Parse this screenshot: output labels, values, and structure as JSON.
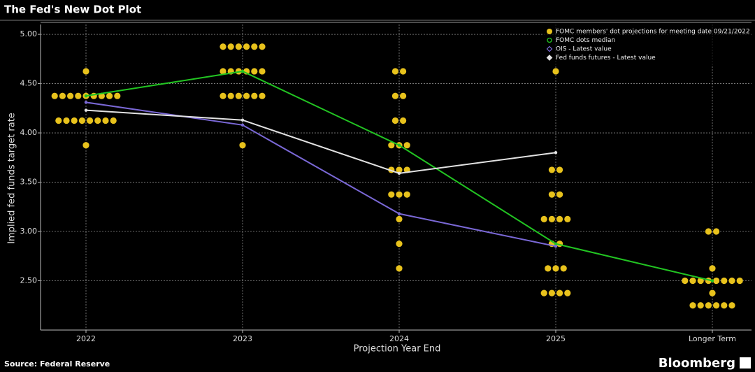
{
  "chart_data": {
    "type": "dot",
    "title": "The Fed's New Dot Plot",
    "y_label": "Implied fed funds target rate",
    "x_label": "Projection Year End",
    "source": "Source: Federal Reserve",
    "brand": "Bloomberg",
    "categories": [
      "2022",
      "2023",
      "2024",
      "2025",
      "Longer Term"
    ],
    "ylim": [
      2.0,
      5.1
    ],
    "yticks": [
      {
        "value": 2.5,
        "label": "2.50"
      },
      {
        "value": 3.0,
        "label": "3.00"
      },
      {
        "value": 3.5,
        "label": "3.50"
      },
      {
        "value": 4.0,
        "label": "4.00"
      },
      {
        "value": 4.5,
        "label": "4.50"
      },
      {
        "value": 5.0,
        "label": "5.00"
      }
    ],
    "grid": true,
    "legend": "top-right",
    "series": [
      {
        "name": "FOMC members' dot projections for meeting date 09/21/2022",
        "type": "dot",
        "color": "#e8c21c",
        "values": [
          [
            4.625,
            4.375,
            4.375,
            4.375,
            4.375,
            4.375,
            4.375,
            4.375,
            4.375,
            4.375,
            4.125,
            4.125,
            4.125,
            4.125,
            4.125,
            4.125,
            4.125,
            4.125,
            3.875
          ],
          [
            4.875,
            4.875,
            4.875,
            4.875,
            4.875,
            4.875,
            4.625,
            4.625,
            4.625,
            4.625,
            4.625,
            4.625,
            4.375,
            4.375,
            4.375,
            4.375,
            4.375,
            4.375,
            3.875
          ],
          [
            4.625,
            4.625,
            4.375,
            4.375,
            4.125,
            4.125,
            3.875,
            3.875,
            3.875,
            3.625,
            3.625,
            3.625,
            3.375,
            3.375,
            3.375,
            3.125,
            2.875,
            2.625
          ],
          [
            4.625,
            3.625,
            3.625,
            3.375,
            3.375,
            3.125,
            3.125,
            3.125,
            3.125,
            2.875,
            2.875,
            2.625,
            2.625,
            2.625,
            2.375,
            2.375,
            2.375,
            2.375
          ],
          [
            3.0,
            3.0,
            2.625,
            2.5,
            2.5,
            2.5,
            2.5,
            2.5,
            2.5,
            2.5,
            2.5,
            2.375,
            2.25,
            2.25,
            2.25,
            2.25,
            2.25,
            2.25
          ]
        ]
      },
      {
        "name": "FOMC dots median",
        "type": "line",
        "color": "#22c422",
        "values": [
          4.375,
          4.625,
          3.875,
          2.875,
          2.5
        ]
      },
      {
        "name": "OIS - Latest value",
        "type": "line",
        "color": "#7a68d6",
        "values": [
          4.31,
          4.08,
          3.18,
          2.85,
          null
        ]
      },
      {
        "name": "Fed funds futures - Latest value",
        "type": "line",
        "color": "#e2e2e2",
        "values": [
          4.23,
          4.13,
          3.59,
          3.8,
          null
        ]
      }
    ]
  }
}
